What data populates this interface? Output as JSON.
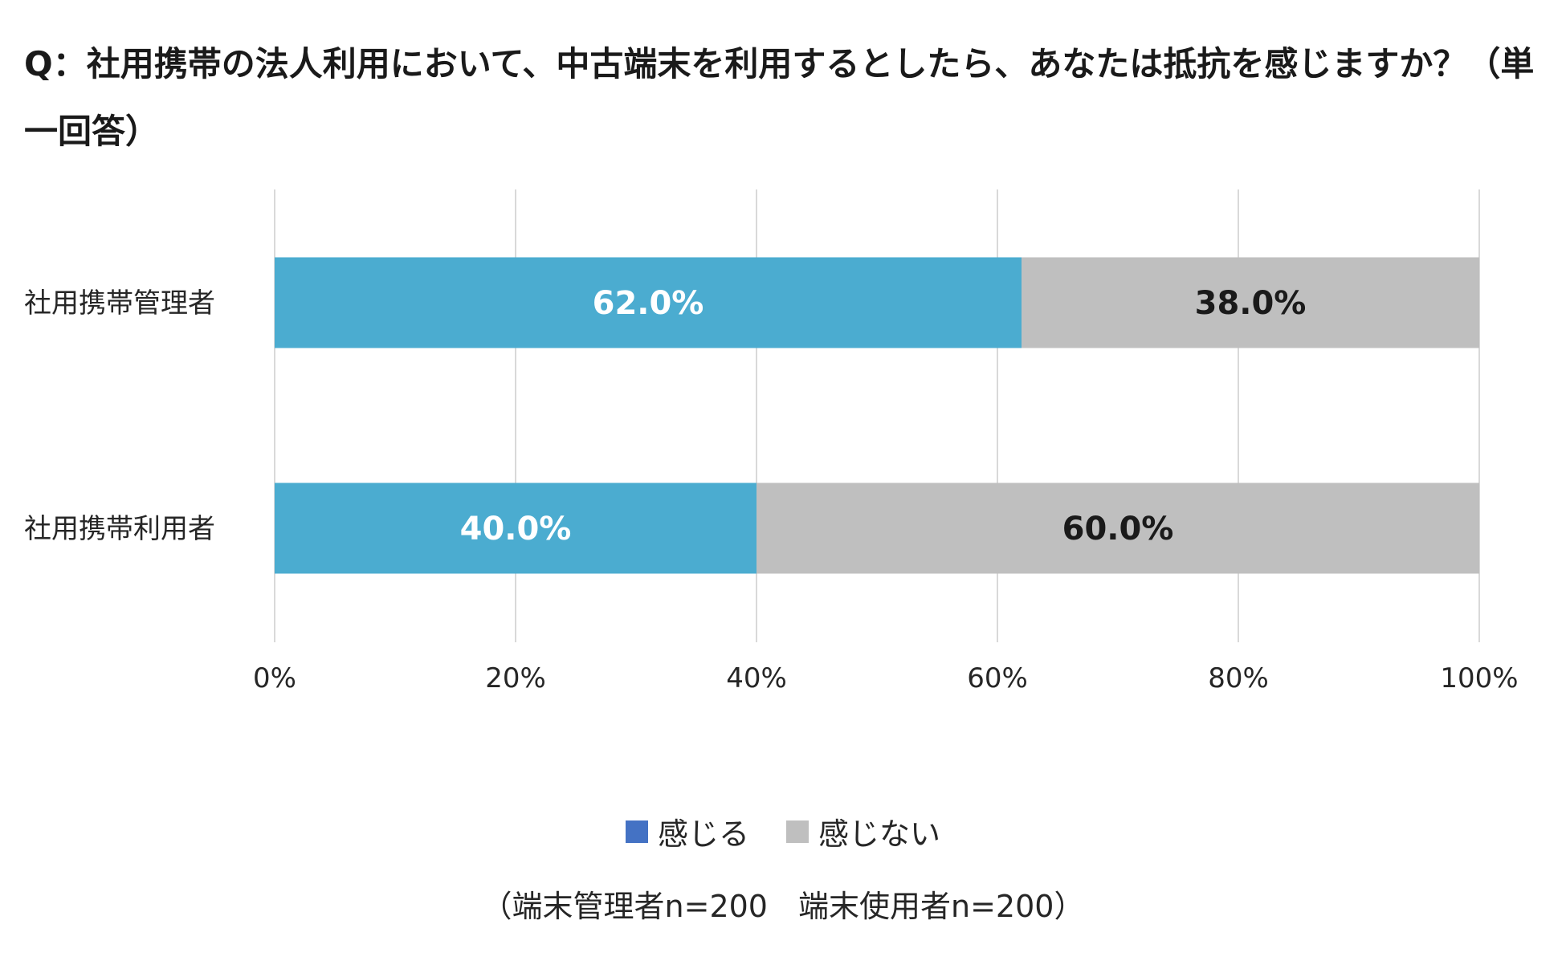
{
  "title": "Q：社用携帯の法人利用において、中古端末を利用するとしたら、あなたは抵抗を感じますか？（単一回答）",
  "note": "（端末管理者n=200　端末使用者n=200）",
  "colors": {
    "series1": "#4bacd0",
    "series1_legend": "#4472c4",
    "series2": "#bfbfbf",
    "gridline": "#d9d9d9",
    "label_on_series1": "#ffffff",
    "label_on_series2": "#1a1a1a"
  },
  "chart_data": {
    "type": "bar",
    "orientation": "horizontal",
    "stacked": true,
    "categories": [
      "社用携帯管理者",
      "社用携帯利用者"
    ],
    "series": [
      {
        "name": "感じる",
        "values": [
          62.0,
          40.0
        ],
        "labels": [
          "62.0%",
          "40.0%"
        ]
      },
      {
        "name": "感じない",
        "values": [
          38.0,
          60.0
        ],
        "labels": [
          "38.0%",
          "60.0%"
        ]
      }
    ],
    "xlim": [
      0,
      100
    ],
    "xticks": [
      0,
      20,
      40,
      60,
      80,
      100
    ],
    "xtick_labels": [
      "0%",
      "20%",
      "40%",
      "60%",
      "80%",
      "100%"
    ],
    "grid": "vertical",
    "legend_position": "bottom"
  }
}
